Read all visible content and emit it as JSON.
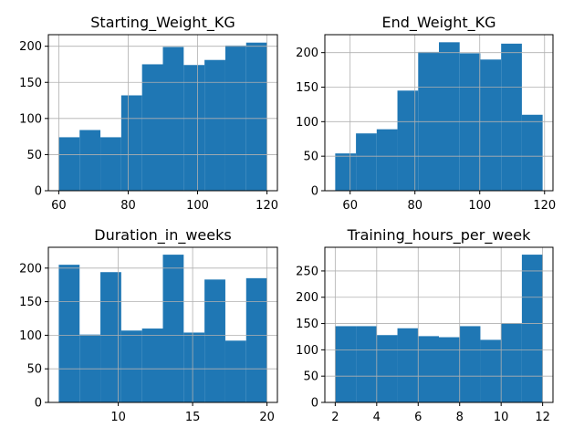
{
  "chart_data": [
    {
      "type": "bar",
      "title": "Starting_Weight_KG",
      "bin_edges": [
        60,
        66,
        72,
        78,
        84,
        90,
        96,
        102,
        108,
        114,
        120
      ],
      "values": [
        74,
        84,
        74,
        132,
        175,
        199,
        174,
        181,
        201,
        205
      ],
      "xlim": [
        57,
        123
      ],
      "ylim": [
        0,
        216
      ],
      "xticks": [
        60,
        80,
        100,
        120
      ],
      "yticks": [
        0,
        50,
        100,
        150,
        200
      ],
      "grid": true
    },
    {
      "type": "bar",
      "title": "End_Weight_KG",
      "bin_edges": [
        55.4,
        61.8,
        68.2,
        74.6,
        81.0,
        87.4,
        93.8,
        100.2,
        106.6,
        113.0,
        119.4
      ],
      "values": [
        54,
        83,
        89,
        145,
        201,
        215,
        199,
        190,
        213,
        110
      ],
      "xlim": [
        52.2,
        122.6
      ],
      "ylim": [
        0,
        226
      ],
      "xticks": [
        60,
        80,
        100,
        120
      ],
      "yticks": [
        0,
        50,
        100,
        150,
        200
      ],
      "grid": true
    },
    {
      "type": "bar",
      "title": "Duration_in_weeks",
      "bin_edges": [
        6,
        7.4,
        8.8,
        10.2,
        11.6,
        13.0,
        14.4,
        15.8,
        17.2,
        18.6,
        20
      ],
      "values": [
        205,
        101,
        194,
        107,
        110,
        220,
        104,
        183,
        92,
        185
      ],
      "xlim": [
        5.3,
        20.7
      ],
      "ylim": [
        0,
        231
      ],
      "xticks": [
        10,
        15,
        20
      ],
      "yticks": [
        0,
        50,
        100,
        150,
        200
      ],
      "grid": true
    },
    {
      "type": "bar",
      "title": "Training_hours_per_week",
      "bin_edges": [
        2,
        3,
        4,
        5,
        6,
        7,
        8,
        9,
        10,
        11,
        12
      ],
      "values": [
        145,
        145,
        128,
        141,
        126,
        124,
        145,
        119,
        151,
        281
      ],
      "xlim": [
        1.5,
        12.5
      ],
      "ylim": [
        0,
        295
      ],
      "xticks": [
        2,
        4,
        6,
        8,
        10,
        12
      ],
      "yticks": [
        0,
        50,
        100,
        150,
        200,
        250
      ],
      "grid": true
    }
  ]
}
